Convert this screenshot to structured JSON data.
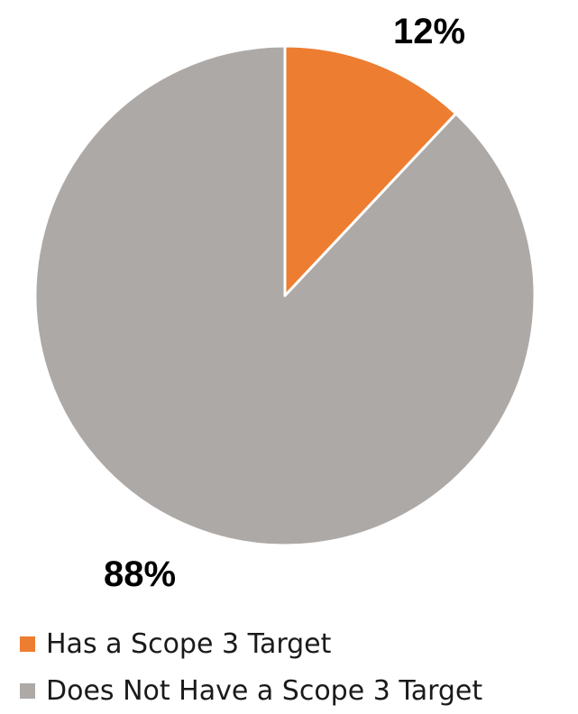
{
  "chart_data": {
    "type": "pie",
    "categories": [
      "Has a Scope 3 Target",
      "Does Not Have a Scope 3 Target"
    ],
    "values": [
      12,
      88
    ],
    "unit": "%",
    "data_labels": [
      "12%",
      "88%"
    ],
    "colors": [
      "#ED7D31",
      "#ADA9A7"
    ],
    "slice_border_color": "#ffffff",
    "start_angle": "12 o'clock",
    "direction": "clockwise",
    "legend": {
      "placement": "bottom-left",
      "entries": [
        {
          "label": "Has a Scope 3 Target",
          "color": "#ED7D31"
        },
        {
          "label": "Does Not Have a Scope 3 Target",
          "color": "#ADA9A7"
        }
      ]
    }
  }
}
